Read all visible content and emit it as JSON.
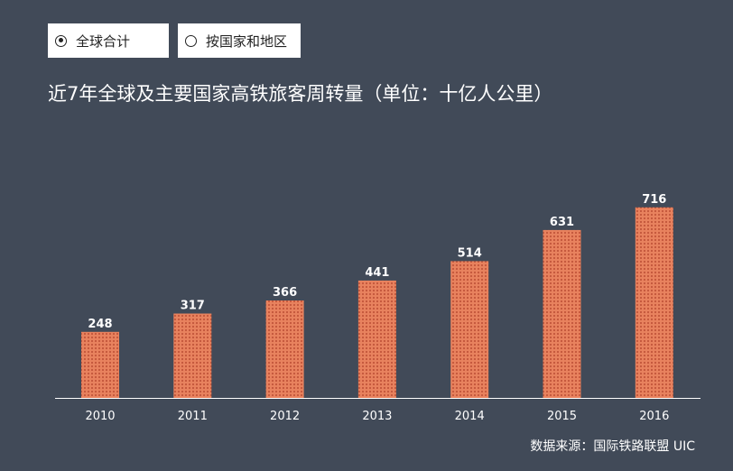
{
  "controls": {
    "global_label": "全球合计",
    "country_label": "按国家和地区",
    "selected": "global"
  },
  "title": "近7年全球及主要国家高铁旅客周转量（单位：十亿人公里）",
  "source": "数据来源：国际铁路联盟  UIC",
  "colors": {
    "background": "#414a58",
    "bar_fill": "#e8825e",
    "bar_dot": "#c2563a"
  },
  "chart_data": {
    "type": "bar",
    "title": "近7年全球及主要国家高铁旅客周转量（单位：十亿人公里）",
    "categories": [
      "2010",
      "2011",
      "2012",
      "2013",
      "2014",
      "2015",
      "2016"
    ],
    "values": [
      248,
      317,
      366,
      441,
      514,
      631,
      716
    ],
    "xlabel": "",
    "ylabel": "",
    "ylim": [
      0,
      800
    ],
    "grid": false,
    "legend": "none"
  }
}
